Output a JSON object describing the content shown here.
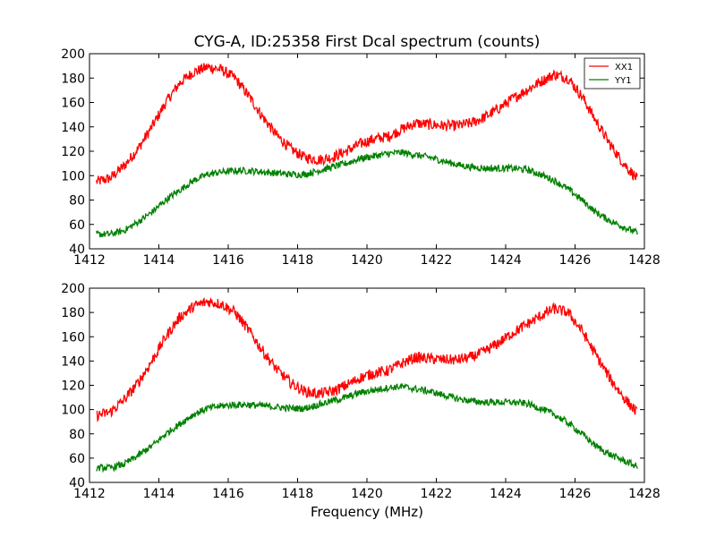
{
  "figure": {
    "title": "CYG-A, ID:25358 First Dcal spectrum (counts)",
    "xlabel": "Frequency (MHz)"
  },
  "chart_data": [
    {
      "type": "line",
      "title": "CYG-A, ID:25358 First Dcal spectrum (counts)",
      "xlabel": "",
      "ylabel": "",
      "xlim": [
        1412,
        1428
      ],
      "ylim": [
        40,
        200
      ],
      "xticks": [
        1412,
        1414,
        1416,
        1418,
        1420,
        1422,
        1424,
        1426,
        1428
      ],
      "yticks": [
        40,
        60,
        80,
        100,
        120,
        140,
        160,
        180,
        200
      ],
      "grid": false,
      "legend": {
        "position": "top-right",
        "entries": [
          "XX1",
          "YY1"
        ]
      },
      "x": [
        1412.2,
        1412.6,
        1413.0,
        1413.4,
        1413.8,
        1414.2,
        1414.6,
        1415.0,
        1415.4,
        1415.8,
        1416.2,
        1416.6,
        1417.0,
        1417.4,
        1417.8,
        1418.2,
        1418.6,
        1419.0,
        1419.4,
        1419.8,
        1420.2,
        1420.6,
        1421.0,
        1421.4,
        1421.8,
        1422.2,
        1422.6,
        1423.0,
        1423.4,
        1423.8,
        1424.2,
        1424.6,
        1425.0,
        1425.4,
        1425.8,
        1426.2,
        1426.6,
        1427.0,
        1427.4,
        1427.8
      ],
      "series": [
        {
          "name": "XX1",
          "color": "#ff0000",
          "values": [
            95,
            98,
            108,
            122,
            140,
            160,
            176,
            185,
            189,
            187,
            180,
            165,
            148,
            133,
            122,
            115,
            113,
            115,
            120,
            126,
            130,
            132,
            138,
            143,
            142,
            141,
            141,
            143,
            148,
            155,
            163,
            170,
            177,
            183,
            180,
            165,
            145,
            126,
            110,
            97
          ]
        },
        {
          "name": "YY1",
          "color": "#008000",
          "values": [
            52,
            52,
            55,
            62,
            70,
            80,
            88,
            96,
            101,
            103,
            104,
            104,
            103,
            102,
            101,
            101,
            104,
            107,
            110,
            114,
            116,
            118,
            119,
            117,
            115,
            112,
            109,
            107,
            106,
            106,
            106,
            105,
            101,
            96,
            89,
            80,
            70,
            63,
            58,
            53
          ]
        }
      ]
    },
    {
      "type": "line",
      "title": "",
      "xlabel": "Frequency (MHz)",
      "ylabel": "",
      "xlim": [
        1412,
        1428
      ],
      "ylim": [
        40,
        200
      ],
      "xticks": [
        1412,
        1414,
        1416,
        1418,
        1420,
        1422,
        1424,
        1426,
        1428
      ],
      "yticks": [
        40,
        60,
        80,
        100,
        120,
        140,
        160,
        180,
        200
      ],
      "grid": false,
      "legend": null,
      "x": [
        1412.2,
        1412.6,
        1413.0,
        1413.4,
        1413.8,
        1414.2,
        1414.6,
        1415.0,
        1415.4,
        1415.8,
        1416.2,
        1416.6,
        1417.0,
        1417.4,
        1417.8,
        1418.2,
        1418.6,
        1419.0,
        1419.4,
        1419.8,
        1420.2,
        1420.6,
        1421.0,
        1421.4,
        1421.8,
        1422.2,
        1422.6,
        1423.0,
        1423.4,
        1423.8,
        1424.2,
        1424.6,
        1425.0,
        1425.4,
        1425.8,
        1426.2,
        1426.6,
        1427.0,
        1427.4,
        1427.8
      ],
      "series": [
        {
          "name": "",
          "color": "#ff0000",
          "values": [
            95,
            98,
            108,
            122,
            140,
            160,
            176,
            185,
            189,
            187,
            180,
            165,
            148,
            133,
            122,
            115,
            113,
            115,
            120,
            126,
            130,
            132,
            138,
            143,
            142,
            141,
            141,
            143,
            148,
            155,
            163,
            170,
            177,
            183,
            180,
            165,
            145,
            126,
            110,
            97
          ]
        },
        {
          "name": "",
          "color": "#008000",
          "values": [
            52,
            52,
            55,
            62,
            70,
            80,
            88,
            96,
            101,
            103,
            104,
            104,
            103,
            102,
            101,
            101,
            104,
            107,
            110,
            114,
            116,
            118,
            119,
            117,
            115,
            112,
            109,
            107,
            106,
            106,
            106,
            105,
            101,
            96,
            89,
            80,
            70,
            63,
            58,
            53
          ]
        }
      ]
    }
  ]
}
